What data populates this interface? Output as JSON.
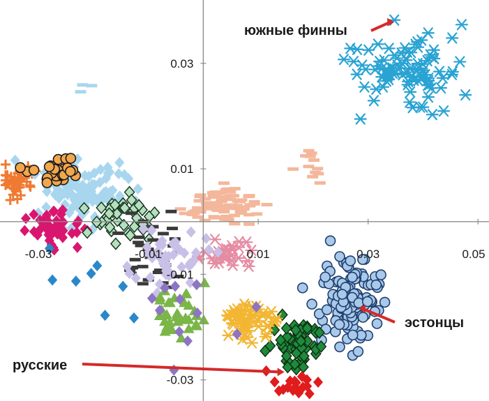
{
  "chart_data": {
    "type": "scatter",
    "title": "",
    "xlabel": "",
    "ylabel": "",
    "xlim": [
      -0.037,
      0.052
    ],
    "ylim": [
      -0.034,
      0.042
    ],
    "grid": false,
    "legend": "none",
    "x_ticks": [
      {
        "value": -0.03,
        "label": "-0.03"
      },
      {
        "value": -0.01,
        "label": "-0.01"
      },
      {
        "value": 0.01,
        "label": "0.01"
      },
      {
        "value": 0.03,
        "label": "0.03"
      },
      {
        "value": 0.05,
        "label": "0.05"
      }
    ],
    "y_ticks": [
      {
        "value": 0.03,
        "label": "0.03"
      },
      {
        "value": 0.01,
        "label": "0.01"
      },
      {
        "value": -0.01,
        "label": "-0.01"
      },
      {
        "value": -0.03,
        "label": "-0.03"
      }
    ],
    "annotations": [
      {
        "text": "южные финны",
        "target": [
          0.034,
          0.0378
        ]
      },
      {
        "text": "эстонцы",
        "target": [
          0.029,
          -0.0165
        ]
      },
      {
        "text": "русские",
        "target": [
          0.014,
          -0.0285
        ]
      }
    ],
    "series": [
      {
        "marker": "star",
        "color": "#29a3d3",
        "center": [
          0.036,
          0.028
        ],
        "spread": [
          0.008,
          0.007
        ],
        "n": 95,
        "seed": 1
      },
      {
        "marker": "circle",
        "color": "#a9c9ea",
        "stroke": "#1f3f6e",
        "center": [
          0.027,
          -0.015
        ],
        "spread": [
          0.0045,
          0.0075
        ],
        "n": 120,
        "seed": 2
      },
      {
        "marker": "diamond",
        "color": "#1f8a3c",
        "stroke": "#0b2e12",
        "center": [
          0.017,
          -0.023
        ],
        "spread": [
          0.0035,
          0.0045
        ],
        "n": 60,
        "seed": 3
      },
      {
        "marker": "diamond",
        "color": "#e01c1c",
        "center": [
          0.017,
          -0.031
        ],
        "spread": [
          0.004,
          0.002
        ],
        "n": 18,
        "seed": 4
      },
      {
        "marker": "star",
        "color": "#f2b632",
        "center": [
          0.008,
          -0.019
        ],
        "spread": [
          0.004,
          0.0035
        ],
        "n": 55,
        "seed": 5
      },
      {
        "marker": "star",
        "color": "#e58ca3",
        "center": [
          0.004,
          -0.006
        ],
        "spread": [
          0.004,
          0.003
        ],
        "n": 30,
        "seed": 6
      },
      {
        "marker": "dash",
        "color": "#f4b79b",
        "center": [
          0.004,
          0.003
        ],
        "spread": [
          0.006,
          0.003
        ],
        "n": 80,
        "seed": 7
      },
      {
        "marker": "dash",
        "color": "#f4b79b",
        "center": [
          0.02,
          0.011
        ],
        "spread": [
          0.004,
          0.004
        ],
        "n": 12,
        "seed": 8
      },
      {
        "marker": "cross",
        "color": "#f07a32",
        "center": [
          -0.034,
          0.008
        ],
        "spread": [
          0.003,
          0.003
        ],
        "n": 40,
        "seed": 9
      },
      {
        "marker": "diamond",
        "color": "#a9d6ef",
        "center": [
          -0.022,
          0.005
        ],
        "spread": [
          0.007,
          0.005
        ],
        "n": 120,
        "seed": 10
      },
      {
        "marker": "circle",
        "color": "#f2a64d",
        "stroke": "#1a1a1a",
        "center": [
          -0.027,
          0.009
        ],
        "spread": [
          0.004,
          0.003
        ],
        "n": 30,
        "seed": 11
      },
      {
        "marker": "diamond",
        "color": "#d9166f",
        "center": [
          -0.027,
          -0.001
        ],
        "spread": [
          0.004,
          0.003
        ],
        "n": 45,
        "seed": 12
      },
      {
        "marker": "diamond",
        "color": "#b5dfbe",
        "stroke": "#0f3018",
        "center": [
          -0.015,
          0.001
        ],
        "spread": [
          0.005,
          0.004
        ],
        "n": 40,
        "seed": 13
      },
      {
        "marker": "dash",
        "color": "#3a3a3a",
        "center": [
          -0.008,
          -0.007
        ],
        "spread": [
          0.006,
          0.008
        ],
        "n": 35,
        "seed": 14
      },
      {
        "marker": "diamond",
        "color": "#c9c0e8",
        "center": [
          -0.006,
          -0.006
        ],
        "spread": [
          0.006,
          0.005
        ],
        "n": 45,
        "seed": 15
      },
      {
        "marker": "triangle",
        "color": "#7ab648",
        "center": [
          -0.004,
          -0.017
        ],
        "spread": [
          0.005,
          0.004
        ],
        "n": 35,
        "seed": 16
      },
      {
        "marker": "diamond",
        "color": "#8d75c2",
        "center": [
          -0.004,
          -0.015
        ],
        "spread": [
          0.012,
          0.007
        ],
        "n": 12,
        "seed": 17
      },
      {
        "marker": "diamond",
        "color": "#2a88c8",
        "center": [
          -0.019,
          -0.011
        ],
        "spread": [
          0.01,
          0.006
        ],
        "n": 8,
        "seed": 18
      },
      {
        "marker": "dash",
        "color": "#a9d6ef",
        "center": [
          -0.02,
          0.026
        ],
        "spread": [
          0.008,
          0.003
        ],
        "n": 3,
        "seed": 19
      }
    ]
  }
}
